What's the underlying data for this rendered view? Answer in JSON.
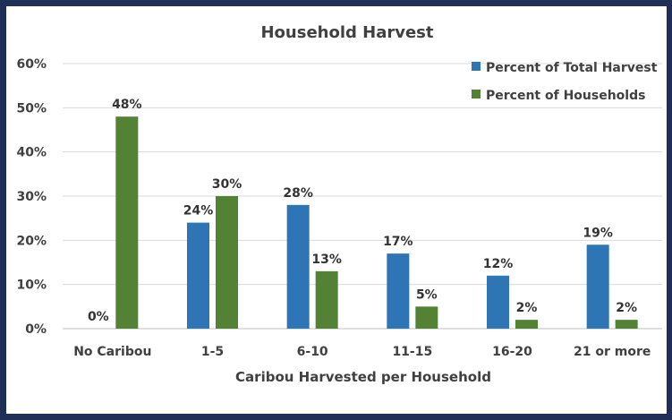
{
  "chart_data": {
    "type": "bar",
    "title": "Household Harvest",
    "xlabel": "Caribou Harvested per Household",
    "ylabel": "",
    "categories": [
      "No Caribou",
      "1-5",
      "6-10",
      "11-15",
      "16-20",
      "21 or more"
    ],
    "series": [
      {
        "name": "Percent of Total Harvest",
        "values": [
          0,
          24,
          28,
          17,
          12,
          19
        ],
        "labels": [
          "0%",
          "24%",
          "28%",
          "17%",
          "12%",
          "19%"
        ],
        "color": "#2e75b6"
      },
      {
        "name": "Percent of Households",
        "values": [
          48,
          30,
          13,
          5,
          2,
          2
        ],
        "labels": [
          "48%",
          "30%",
          "13%",
          "5%",
          "2%",
          "2%"
        ],
        "color": "#548235"
      }
    ],
    "ylim": [
      0,
      60
    ],
    "yticks": [
      "0%",
      "10%",
      "20%",
      "30%",
      "40%",
      "50%",
      "60%"
    ],
    "grid": true,
    "legend": "top-right"
  }
}
